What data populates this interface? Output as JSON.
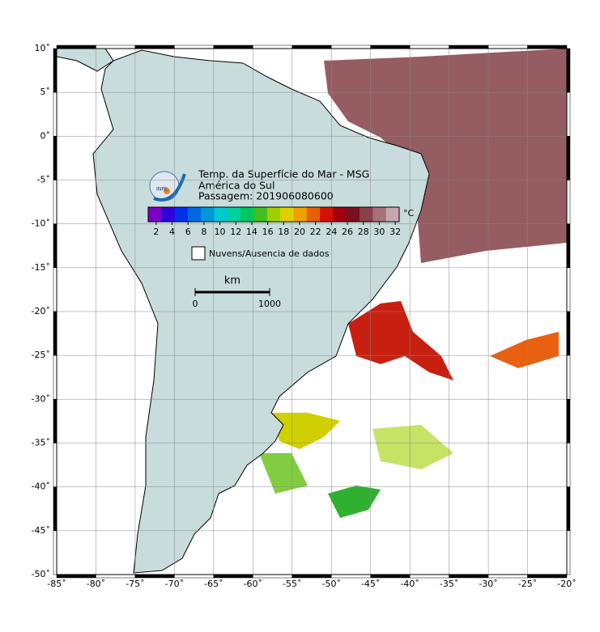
{
  "map": {
    "title": "Temp. da Superfície do Mar - MSG",
    "region": "América do Sul",
    "pass": "Passagem: 201906080600",
    "logo_text": "INPE",
    "colorbar": {
      "unit": "°C",
      "clim": [
        1,
        32.5
      ],
      "ticks": [
        2,
        4,
        6,
        8,
        10,
        12,
        14,
        16,
        18,
        20,
        22,
        24,
        26,
        28,
        30,
        32
      ],
      "colors": [
        "#7a00c8",
        "#3200dc",
        "#0030e8",
        "#0068e0",
        "#0098d8",
        "#00c8d0",
        "#00d0a0",
        "#00c860",
        "#40c020",
        "#a0d000",
        "#e0d000",
        "#f0a000",
        "#e86000",
        "#d81000",
        "#a00010",
        "#7a1020",
        "#8a4048",
        "#a87078",
        "#c8a8b0"
      ]
    },
    "legend": "Nuvens/Ausencia de dados",
    "scale": {
      "unit": "km",
      "ticks": [
        0,
        1000
      ]
    },
    "xlim": [
      -85,
      -20
    ],
    "ylim": [
      -50,
      10
    ],
    "xticks": [
      {
        "value": -85,
        "label": "-85˚"
      },
      {
        "value": -80,
        "label": "-80˚"
      },
      {
        "value": -75,
        "label": "-75˚"
      },
      {
        "value": -70,
        "label": "-70˚"
      },
      {
        "value": -65,
        "label": "-65˚"
      },
      {
        "value": -60,
        "label": "-60˚"
      },
      {
        "value": -55,
        "label": "-55˚"
      },
      {
        "value": -50,
        "label": "-50˚"
      },
      {
        "value": -45,
        "label": "-45˚"
      },
      {
        "value": -40,
        "label": "-40˚"
      },
      {
        "value": -35,
        "label": "-35˚"
      },
      {
        "value": -30,
        "label": "-30˚"
      },
      {
        "value": -25,
        "label": "-25˚"
      },
      {
        "value": -20,
        "label": "-20˚"
      }
    ],
    "yticks": [
      {
        "value": 10,
        "label": "10˚"
      },
      {
        "value": 5,
        "label": "5˚"
      },
      {
        "value": 0,
        "label": "0˚"
      },
      {
        "value": -5,
        "label": "-5˚"
      },
      {
        "value": -10,
        "label": "-10˚"
      },
      {
        "value": -15,
        "label": "-15˚"
      },
      {
        "value": -20,
        "label": "-20˚"
      },
      {
        "value": -25,
        "label": "-25˚"
      },
      {
        "value": -30,
        "label": "-30˚"
      },
      {
        "value": -35,
        "label": "-35˚"
      },
      {
        "value": -40,
        "label": "-40˚"
      },
      {
        "value": -45,
        "label": "-45˚"
      },
      {
        "value": -50,
        "label": "-50˚"
      }
    ],
    "grid": true
  }
}
